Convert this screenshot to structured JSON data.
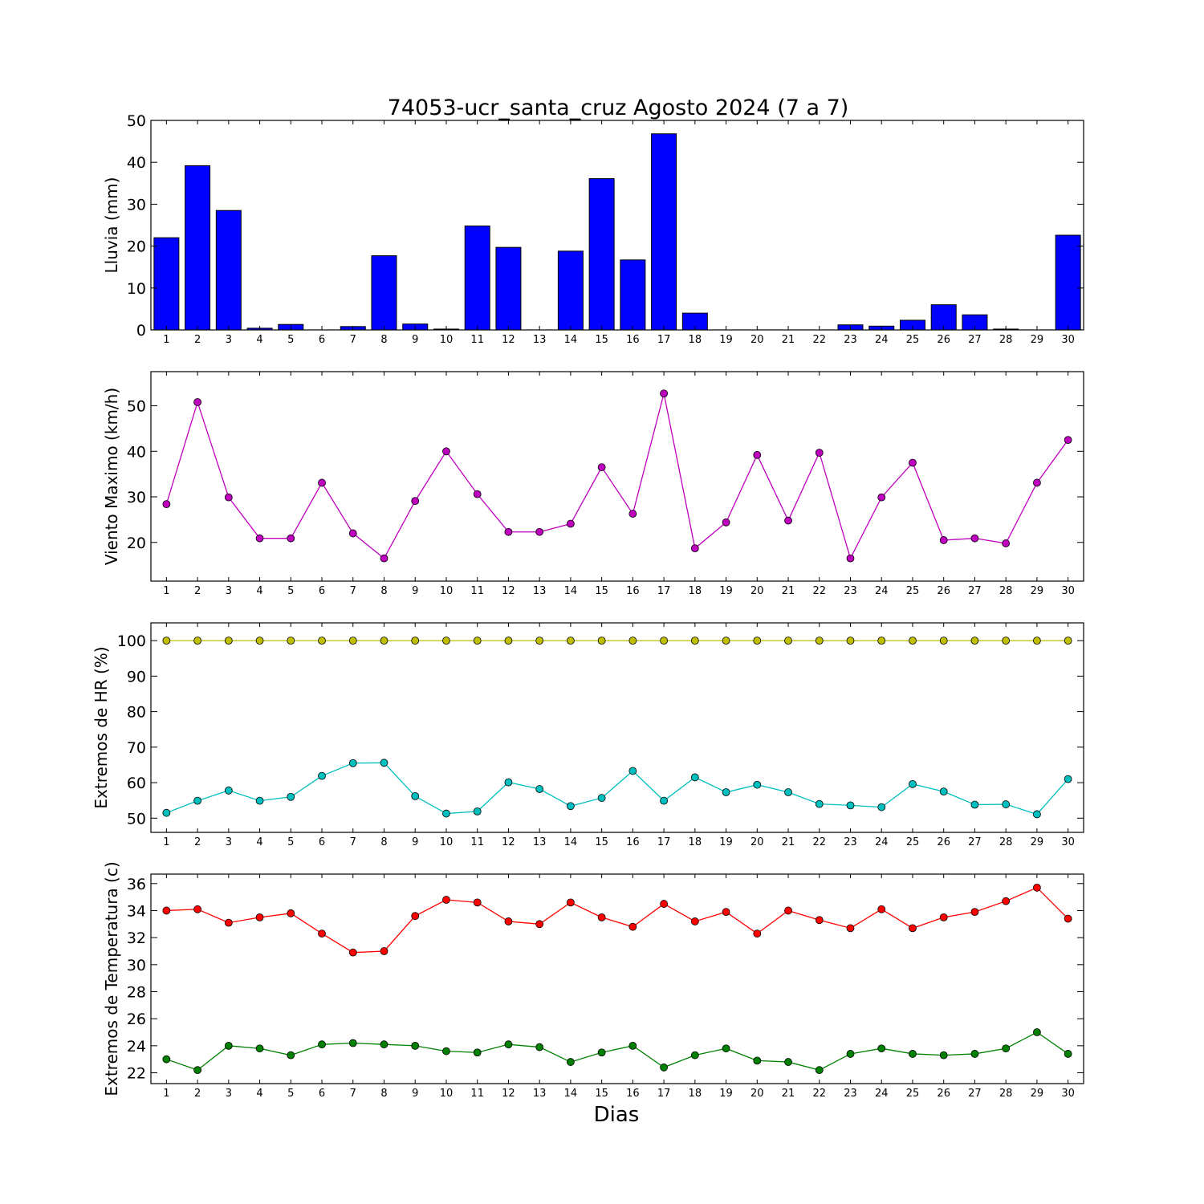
{
  "figure": {
    "title": "74053-ucr_santa_cruz Agosto 2024  (7 a 7)",
    "xlabel": "Dias"
  },
  "chart_data": [
    {
      "type": "bar",
      "ylabel": "Lluvia (mm)",
      "ylim": [
        0,
        50
      ],
      "yticks": [
        0,
        10,
        20,
        30,
        40,
        50
      ],
      "xlim": [
        0.5,
        30.5
      ],
      "categories": [
        "1",
        "2",
        "3",
        "4",
        "5",
        "6",
        "7",
        "8",
        "9",
        "10",
        "11",
        "12",
        "13",
        "14",
        "15",
        "16",
        "17",
        "18",
        "19",
        "20",
        "21",
        "22",
        "23",
        "24",
        "25",
        "26",
        "27",
        "28",
        "29",
        "30"
      ],
      "values": [
        22.0,
        39.2,
        28.5,
        0.4,
        1.3,
        0.0,
        0.8,
        17.7,
        1.4,
        0.2,
        24.8,
        19.7,
        0.0,
        18.8,
        36.1,
        16.7,
        46.8,
        4.0,
        0.0,
        0.0,
        0.0,
        0.0,
        1.2,
        0.9,
        2.3,
        6.0,
        3.6,
        0.2,
        0.0,
        22.6
      ],
      "color": "#0000ff",
      "grid": false
    },
    {
      "type": "line",
      "ylabel": "Viento Maximo (km/h)",
      "ylim": [
        11.5,
        57.5
      ],
      "yticks": [
        20,
        30,
        40,
        50
      ],
      "xlim": [
        0.5,
        30.5
      ],
      "x": [
        1,
        2,
        3,
        4,
        5,
        6,
        7,
        8,
        9,
        10,
        11,
        12,
        13,
        14,
        15,
        16,
        17,
        18,
        19,
        20,
        21,
        22,
        23,
        24,
        25,
        26,
        27,
        28,
        29,
        30
      ],
      "series": [
        {
          "color": "#bf00bf",
          "values": [
            28.4,
            50.8,
            29.9,
            20.9,
            20.9,
            33.1,
            22.0,
            16.5,
            29.1,
            40.0,
            30.6,
            22.3,
            22.3,
            24.1,
            36.5,
            26.3,
            52.7,
            18.7,
            24.4,
            39.2,
            24.8,
            39.7,
            16.5,
            29.9,
            37.5,
            20.5,
            20.9,
            19.8,
            33.1,
            42.5
          ]
        }
      ],
      "grid": false
    },
    {
      "type": "line",
      "ylabel": "Extremos de HR (%)",
      "ylim": [
        46,
        105
      ],
      "yticks": [
        50,
        60,
        70,
        80,
        90,
        100
      ],
      "xlim": [
        0.5,
        30.5
      ],
      "x": [
        1,
        2,
        3,
        4,
        5,
        6,
        7,
        8,
        9,
        10,
        11,
        12,
        13,
        14,
        15,
        16,
        17,
        18,
        19,
        20,
        21,
        22,
        23,
        24,
        25,
        26,
        27,
        28,
        29,
        30
      ],
      "series": [
        {
          "color": "#bfbf00",
          "values": [
            100,
            100,
            100,
            100,
            100,
            100,
            100,
            100,
            100,
            100,
            100,
            100,
            100,
            100,
            100,
            100,
            100,
            100,
            100,
            100,
            100,
            100,
            100,
            100,
            100,
            100,
            100,
            100,
            100,
            100
          ]
        },
        {
          "color": "#00bfbf",
          "values": [
            51.5,
            54.9,
            57.8,
            54.9,
            56.0,
            61.9,
            65.5,
            65.6,
            56.2,
            51.3,
            51.9,
            60.1,
            58.2,
            53.4,
            55.7,
            63.3,
            54.9,
            61.5,
            57.3,
            59.4,
            57.3,
            54.0,
            53.6,
            53.1,
            59.6,
            57.5,
            53.8,
            53.9,
            51.1,
            61.0
          ]
        }
      ],
      "grid": false
    },
    {
      "type": "line",
      "ylabel": "Extremos de Temperatura (c)",
      "ylim": [
        21.2,
        36.7
      ],
      "yticks": [
        22,
        24,
        26,
        28,
        30,
        32,
        34,
        36
      ],
      "xlim": [
        0.5,
        30.5
      ],
      "x": [
        1,
        2,
        3,
        4,
        5,
        6,
        7,
        8,
        9,
        10,
        11,
        12,
        13,
        14,
        15,
        16,
        17,
        18,
        19,
        20,
        21,
        22,
        23,
        24,
        25,
        26,
        27,
        28,
        29,
        30
      ],
      "series": [
        {
          "color": "#ff0000",
          "values": [
            34.0,
            34.1,
            33.1,
            33.5,
            33.8,
            32.3,
            30.9,
            31.0,
            33.6,
            34.8,
            34.6,
            33.2,
            33.0,
            34.6,
            33.5,
            32.8,
            34.5,
            33.2,
            33.9,
            32.3,
            34.0,
            33.3,
            32.7,
            34.1,
            32.7,
            33.5,
            33.9,
            34.7,
            35.7,
            33.4
          ]
        },
        {
          "color": "#008000",
          "values": [
            23.0,
            22.2,
            24.0,
            23.8,
            23.3,
            24.1,
            24.2,
            24.1,
            24.0,
            23.6,
            23.5,
            24.1,
            23.9,
            22.8,
            23.5,
            24.0,
            22.4,
            23.3,
            23.8,
            22.9,
            22.8,
            22.2,
            23.4,
            23.8,
            23.4,
            23.3,
            23.4,
            23.8,
            25.0,
            23.4
          ]
        }
      ],
      "grid": false
    }
  ]
}
